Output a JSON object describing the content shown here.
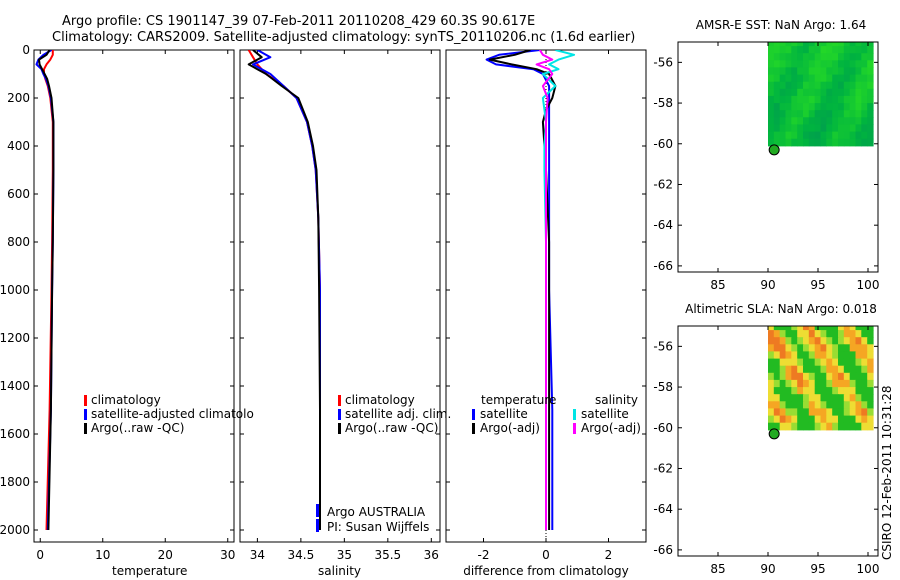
{
  "header": {
    "title_line1": "Argo profile: CS 1901147_39 07-Feb-2011 20110208_429 60.3S 90.617E",
    "title_line2": "Climatology: CARS2009. Satellite-adjusted climatology: synTS_20110206.nc (1.6d earlier)"
  },
  "colors": {
    "climatology": "#ff0000",
    "satellite": "#0000ff",
    "argo": "#000000",
    "sal_satellite": "#00e5e5",
    "sal_argo": "#ff00ff",
    "float_marker": "#22aa22"
  },
  "chart_data": [
    {
      "type": "line",
      "name": "temperature-profile",
      "xlabel": "temperature",
      "ylabel": "",
      "xlim": [
        -1,
        31
      ],
      "ylim": [
        2050,
        0
      ],
      "xticks": [
        0,
        10,
        20,
        30
      ],
      "yticks": [
        0,
        200,
        400,
        600,
        800,
        1000,
        1200,
        1400,
        1600,
        1800,
        2000
      ],
      "legend": [
        "climatology",
        "satellite-adjusted climatolo",
        "Argo(..raw -QC)"
      ],
      "series": [
        {
          "name": "climatology",
          "depth": [
            0,
            20,
            40,
            60,
            80,
            100,
            120,
            150,
            200,
            300,
            500,
            800,
            1000,
            1500,
            2000
          ],
          "values": [
            2.0,
            2.0,
            1.6,
            1.0,
            0.6,
            0.6,
            0.8,
            1.2,
            1.6,
            2.0,
            2.0,
            1.9,
            1.8,
            1.5,
            1.0
          ]
        },
        {
          "name": "satellite-adjusted climatolo",
          "depth": [
            0,
            20,
            40,
            60,
            80,
            100,
            120,
            150,
            200,
            300,
            500,
            800,
            1000,
            1500,
            2000
          ],
          "values": [
            1.8,
            0.5,
            -0.3,
            -0.6,
            0.2,
            0.5,
            0.9,
            1.3,
            1.7,
            2.1,
            2.1,
            2.0,
            1.9,
            1.7,
            1.2
          ]
        },
        {
          "name": "Argo(..raw -QC)",
          "depth": [
            0,
            20,
            40,
            60,
            80,
            100,
            120,
            150,
            200,
            300,
            500,
            800,
            1000,
            1500,
            2000
          ],
          "values": [
            1.5,
            1.0,
            -0.2,
            -0.1,
            0.3,
            0.7,
            1.1,
            1.4,
            1.8,
            2.1,
            2.1,
            2.0,
            1.9,
            1.7,
            1.3
          ]
        }
      ]
    },
    {
      "type": "line",
      "name": "salinity-profile",
      "xlabel": "salinity",
      "xlim": [
        33.8,
        36.1
      ],
      "ylim": [
        2050,
        0
      ],
      "xticks": [
        34,
        34.5,
        35,
        35.5,
        36
      ],
      "xtick_labels": [
        "34",
        "34.5",
        "35",
        "35.5",
        "36"
      ],
      "legend": [
        "climatology",
        "satellite adj. clim.",
        "Argo(..raw -QC)"
      ],
      "annotation": [
        "Argo AUSTRALIA",
        "PI: Susan Wijffels"
      ],
      "series": [
        {
          "name": "climatology",
          "depth": [
            0,
            30,
            60,
            100,
            150,
            200,
            300,
            400,
            500,
            700,
            1000,
            1500,
            2000
          ],
          "values": [
            33.9,
            33.95,
            34.0,
            34.1,
            34.3,
            34.45,
            34.57,
            34.63,
            34.67,
            34.7,
            34.72,
            34.72,
            34.72
          ]
        },
        {
          "name": "satellite adj. clim.",
          "depth": [
            0,
            30,
            60,
            80,
            100,
            150,
            200,
            300,
            400,
            500,
            700,
            1000,
            1500,
            2000
          ],
          "values": [
            34.0,
            34.15,
            33.95,
            34.05,
            34.15,
            34.3,
            34.45,
            34.57,
            34.63,
            34.67,
            34.7,
            34.72,
            34.72,
            34.72
          ]
        },
        {
          "name": "Argo(..raw -QC)",
          "depth": [
            0,
            30,
            60,
            80,
            100,
            150,
            200,
            300,
            400,
            500,
            700,
            1000,
            1500,
            2000
          ],
          "values": [
            33.95,
            34.05,
            33.9,
            34.0,
            34.1,
            34.28,
            34.47,
            34.58,
            34.64,
            34.68,
            34.7,
            34.71,
            34.72,
            34.72
          ]
        }
      ]
    },
    {
      "type": "line",
      "name": "difference-profile",
      "xlabel": "difference from climatology",
      "xlim": [
        -3.2,
        3.2
      ],
      "ylim": [
        2050,
        0
      ],
      "xticks": [
        -2,
        0,
        2
      ],
      "legend_groups": [
        {
          "title": "temperature",
          "items": [
            "satellite",
            "Argo(-adj)"
          ]
        },
        {
          "title": "salinity",
          "items": [
            "satellite",
            "Argo(-adj)"
          ]
        }
      ],
      "series": [
        {
          "name": "temperature satellite",
          "depth": [
            0,
            20,
            40,
            60,
            80,
            100,
            150,
            200,
            300,
            500,
            800,
            1000,
            1500,
            2000
          ],
          "values": [
            -0.2,
            -1.5,
            -1.9,
            -1.6,
            -0.4,
            -0.1,
            0.1,
            0.1,
            0.1,
            0.1,
            0.1,
            0.1,
            0.2,
            0.2
          ]
        },
        {
          "name": "temperature Argo(-adj)",
          "depth": [
            0,
            20,
            40,
            60,
            80,
            100,
            150,
            200,
            250,
            300,
            500,
            800,
            1000,
            1500,
            2000
          ],
          "values": [
            -0.5,
            -1.0,
            -1.8,
            -1.1,
            -0.3,
            0.1,
            0.3,
            0.2,
            0.0,
            -0.1,
            0.0,
            0.1,
            0.1,
            0.1,
            0.1
          ]
        },
        {
          "name": "salinity satellite",
          "depth": [
            0,
            20,
            40,
            60,
            80,
            100,
            150,
            200,
            300,
            400,
            500,
            800,
            1000,
            1500,
            2000
          ],
          "values": [
            0.3,
            0.9,
            0.4,
            0.1,
            0.4,
            -0.1,
            0.3,
            -0.1,
            0.0,
            -0.05,
            -0.05,
            0.0,
            0.0,
            0.0,
            0.0
          ]
        },
        {
          "name": "salinity Argo(-adj)",
          "depth": [
            0,
            20,
            40,
            60,
            80,
            100,
            150,
            200,
            300,
            500,
            1000,
            2000
          ],
          "values": [
            -0.2,
            -0.1,
            0.2,
            -0.3,
            0.1,
            0.2,
            -0.1,
            0.05,
            0.0,
            0.0,
            0.0,
            0.0
          ]
        }
      ]
    },
    {
      "type": "heatmap",
      "name": "sst-map",
      "title": "AMSR-E SST: NaN Argo: 1.64",
      "xlim": [
        81,
        101
      ],
      "ylim": [
        -66.3,
        -55
      ],
      "xticks": [
        85,
        90,
        95,
        100
      ],
      "yticks": [
        -56,
        -58,
        -60,
        -62,
        -64,
        -66
      ],
      "data_extent": {
        "lon": [
          90,
          100.5
        ],
        "lat": [
          -60.1,
          -54.5
        ]
      },
      "argo_position": {
        "lon": 90.617,
        "lat": -60.3
      }
    },
    {
      "type": "heatmap",
      "name": "sla-map",
      "title": "Altimetric SLA: NaN Argo: 0.018",
      "xlim": [
        81,
        101
      ],
      "ylim": [
        -66.3,
        -55
      ],
      "xticks": [
        85,
        90,
        95,
        100
      ],
      "yticks": [
        -56,
        -58,
        -60,
        -62,
        -64,
        -66
      ],
      "data_extent": {
        "lon": [
          90,
          100.5
        ],
        "lat": [
          -60.1,
          -54.5
        ]
      },
      "argo_position": {
        "lon": 90.617,
        "lat": -60.3
      }
    }
  ],
  "footer": {
    "stamp": "CSIRO 12-Feb-2011 10:31:28"
  }
}
